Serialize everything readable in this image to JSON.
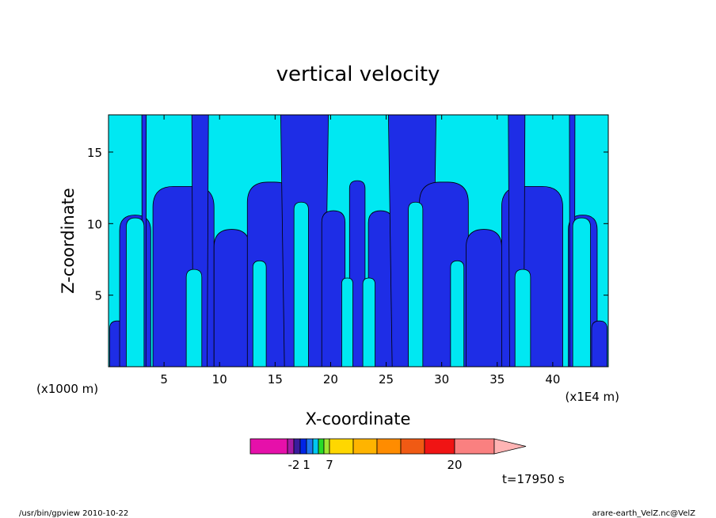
{
  "chart_data": {
    "type": "heatmap",
    "title": "vertical velocity",
    "xlabel": "X-coordinate",
    "ylabel": "Z-coordinate",
    "x_unit_label": "(x1000 m)",
    "x_scale_label": "(x1E4 m)",
    "x_ticks": [
      5,
      10,
      15,
      20,
      25,
      30,
      35,
      40
    ],
    "y_ticks": [
      5,
      10,
      15
    ],
    "xlim": [
      0,
      45
    ],
    "ylim": [
      0,
      17.6
    ],
    "field_colors": {
      "negative": "#1e2de6",
      "positive": "#00e8f2",
      "contour": "#000000"
    },
    "downdraft_columns": [
      {
        "x0": 0.1,
        "x1": 1.5,
        "top": 3.2
      },
      {
        "x0": 1.0,
        "x1": 3.8,
        "top": 10.6
      },
      {
        "x0": 3.0,
        "x1": 3.4,
        "top": 17.6
      },
      {
        "x0": 4.0,
        "x1": 9.5,
        "top": 12.6
      },
      {
        "x0": 7.5,
        "x1": 9.0,
        "top": 17.6
      },
      {
        "x0": 9.5,
        "x1": 12.7,
        "top": 9.6
      },
      {
        "x0": 12.5,
        "x1": 16.8,
        "top": 12.9
      },
      {
        "x0": 15.5,
        "x1": 19.8,
        "top": 17.6
      },
      {
        "x0": 19.2,
        "x1": 21.3,
        "top": 10.9
      },
      {
        "x0": 21.7,
        "x1": 23.1,
        "top": 13.0
      },
      {
        "x0": 23.4,
        "x1": 25.6,
        "top": 10.9
      },
      {
        "x0": 25.2,
        "x1": 29.5,
        "top": 17.6
      },
      {
        "x0": 28.0,
        "x1": 32.4,
        "top": 12.9
      },
      {
        "x0": 32.2,
        "x1": 35.4,
        "top": 9.6
      },
      {
        "x0": 35.4,
        "x1": 40.9,
        "top": 12.6
      },
      {
        "x0": 36.0,
        "x1": 37.5,
        "top": 17.6
      },
      {
        "x0": 41.4,
        "x1": 44.0,
        "top": 10.6
      },
      {
        "x0": 41.5,
        "x1": 42.0,
        "top": 17.6
      },
      {
        "x0": 43.5,
        "x1": 44.9,
        "top": 3.2
      }
    ],
    "updraft_columns": [
      {
        "x0": 1.6,
        "x1": 3.2,
        "top": 10.4
      },
      {
        "x0": 7.0,
        "x1": 8.4,
        "top": 6.8
      },
      {
        "x0": 13.0,
        "x1": 14.2,
        "top": 7.4
      },
      {
        "x0": 16.7,
        "x1": 18.0,
        "top": 11.5
      },
      {
        "x0": 21.0,
        "x1": 22.0,
        "top": 6.2
      },
      {
        "x0": 22.9,
        "x1": 24.0,
        "top": 6.2
      },
      {
        "x0": 27.0,
        "x1": 28.3,
        "top": 11.5
      },
      {
        "x0": 30.8,
        "x1": 32.0,
        "top": 7.4
      },
      {
        "x0": 36.6,
        "x1": 38.0,
        "top": 6.8
      },
      {
        "x0": 41.8,
        "x1": 43.4,
        "top": 10.4
      }
    ]
  },
  "colorbar": {
    "labels": [
      "-2",
      "1",
      "7",
      "20"
    ],
    "colors": [
      "#e610aa",
      "#a61ca6",
      "#3a1c9c",
      "#0024e6",
      "#1e78f0",
      "#00c8f0",
      "#28dc28",
      "#a0e632",
      "#ffd700",
      "#ffb400",
      "#ff8c00",
      "#f05a14",
      "#f01414",
      "#fa8080",
      "#ffb4b4"
    ]
  },
  "time_label": "t=17950 s",
  "footer": {
    "left": "/usr/bin/gpview   2010-10-22",
    "right": "arare-earth_VelZ.nc@VelZ"
  }
}
